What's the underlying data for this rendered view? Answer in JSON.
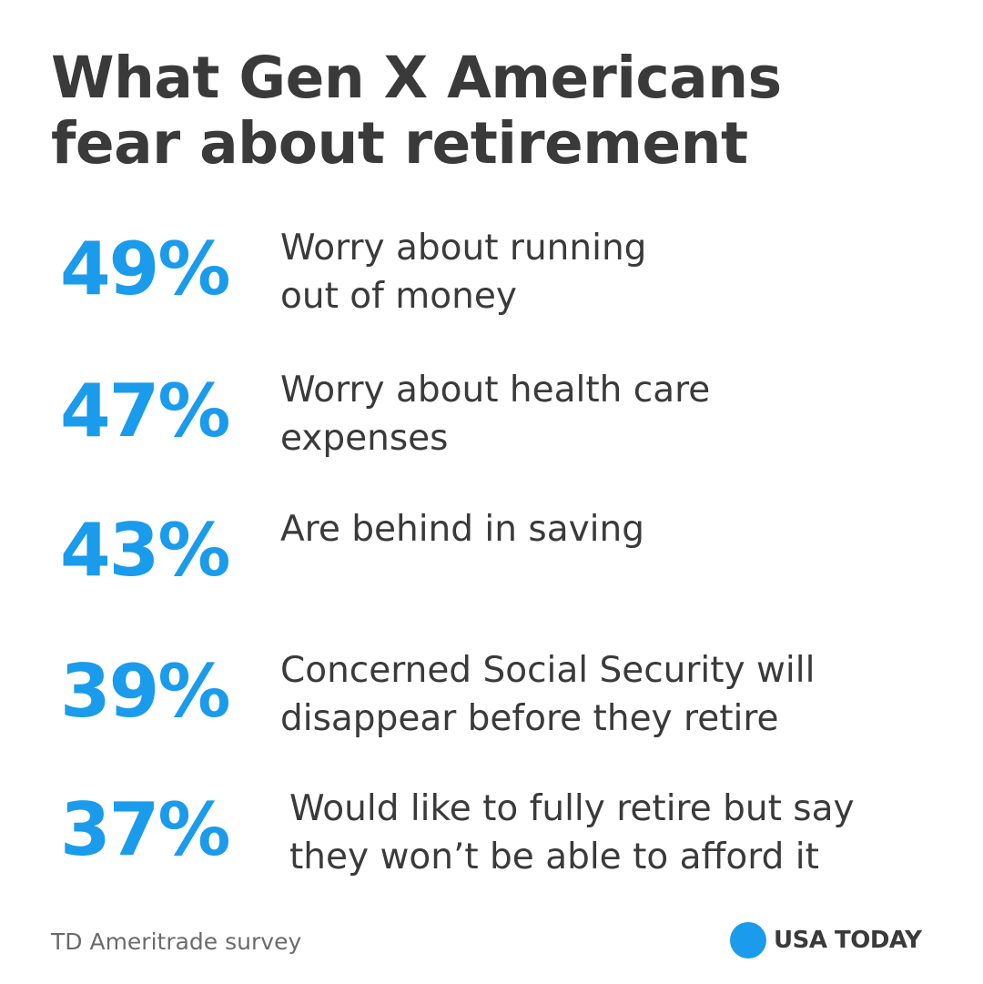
{
  "title_lines": [
    "What Gen X Americans",
    "fear about retirement"
  ],
  "colors": {
    "accent": "#1a9bec",
    "text": "#3a3a3a",
    "source": "#6b6b6b",
    "background": "#ffffff"
  },
  "chart_data": {
    "type": "table",
    "title": "What Gen X Americans fear about retirement",
    "unit": "%",
    "rows": [
      {
        "value": 49,
        "display": "49%",
        "label_lines": [
          "Worry about running",
          "out of money"
        ]
      },
      {
        "value": 47,
        "display": "47%",
        "label_lines": [
          "Worry about health care",
          "expenses"
        ]
      },
      {
        "value": 43,
        "display": "43%",
        "label_lines": [
          "Are behind in saving"
        ]
      },
      {
        "value": 39,
        "display": "39%",
        "label_lines": [
          "Concerned Social Security will",
          "disappear before they retire"
        ]
      },
      {
        "value": 37,
        "display": "37%",
        "label_lines": [
          "Would like to fully retire but say",
          "they won’t be able to afford it"
        ]
      }
    ]
  },
  "footer": {
    "source": "TD Ameritrade survey",
    "logo_text": "USA TODAY",
    "logo_icon": "blue-circle-logo-icon"
  }
}
